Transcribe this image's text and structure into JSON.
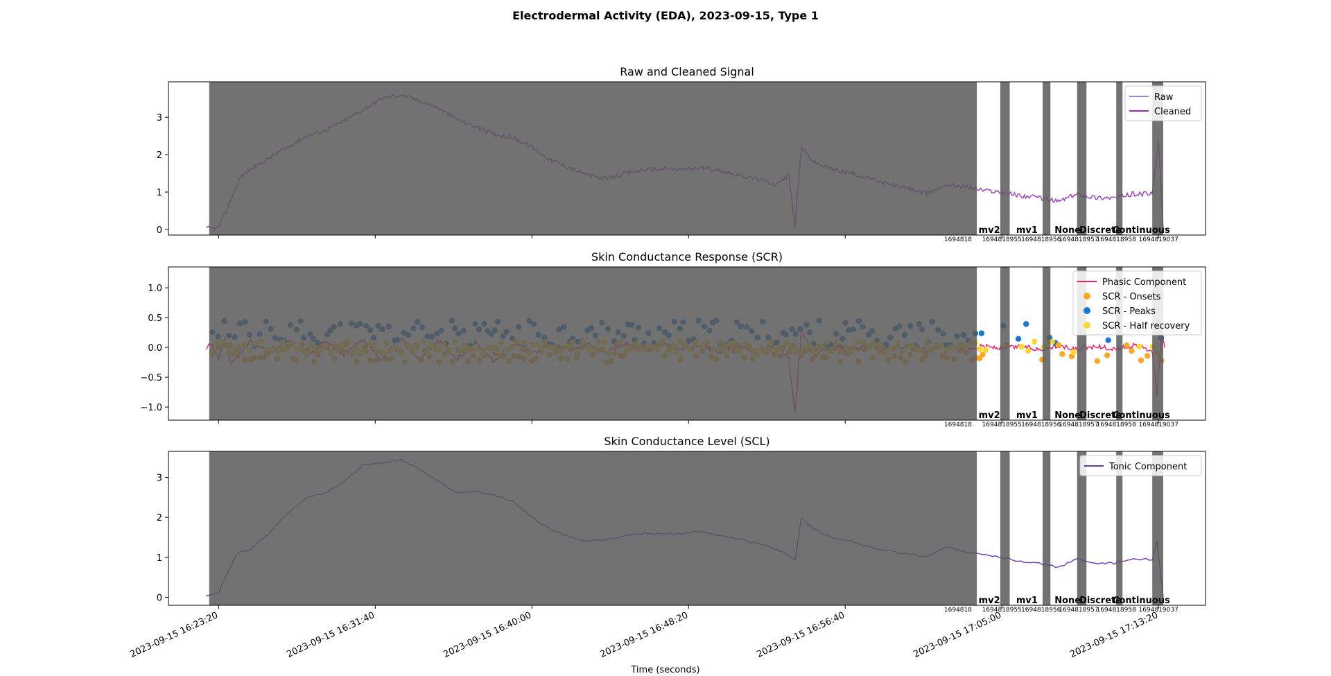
{
  "figure": {
    "title": "Electrodermal Activity (EDA), 2023-09-15, Type 1",
    "xlabel": "Time (seconds)"
  },
  "colors": {
    "raw": "#8e8ece",
    "cleaned": "#9c27b0",
    "phasic": "#e91e63",
    "onsets": "#ffa726",
    "peaks": "#1976d2",
    "half_recovery": "#fdd835",
    "tonic": "#673ab7",
    "shade": "#595959"
  },
  "x_axis": {
    "range": [
      "2023-09-15 16:20:40",
      "2023-09-15 17:15:50"
    ],
    "ticks": [
      "2023-09-15 16:23:20",
      "2023-09-15 16:31:40",
      "2023-09-15 16:40:00",
      "2023-09-15 16:48:20",
      "2023-09-15 16:56:40",
      "2023-09-15 17:05:00",
      "2023-09-15 17:13:20"
    ]
  },
  "regions": {
    "shaded_spans": [
      [
        "2023-09-15 16:22:50",
        "2023-09-15 17:03:40"
      ],
      [
        "2023-09-15 17:04:55",
        "2023-09-15 17:05:25"
      ],
      [
        "2023-09-15 17:07:10",
        "2023-09-15 17:07:35"
      ],
      [
        "2023-09-15 17:09:00",
        "2023-09-15 17:09:30"
      ],
      [
        "2023-09-15 17:11:05",
        "2023-09-15 17:11:25"
      ],
      [
        "2023-09-15 17:13:00",
        "2023-09-15 17:13:35"
      ]
    ],
    "labels": [
      {
        "text": "mv2",
        "t": "2023-09-15 17:04:20"
      },
      {
        "text": "mv1",
        "t": "2023-09-15 17:06:20"
      },
      {
        "text": "None",
        "t": "2023-09-15 17:08:30"
      },
      {
        "text": "Discrete",
        "t": "2023-09-15 17:10:15"
      },
      {
        "text": "Continuous",
        "t": "2023-09-15 17:12:25"
      }
    ],
    "id_labels": [
      {
        "text": "1694818",
        "t": "2023-09-15 17:02:40"
      },
      {
        "text": "1694818955",
        "t": "2023-09-15 17:05:00"
      },
      {
        "text": "1694818956",
        "t": "2023-09-15 17:07:05"
      },
      {
        "text": "1694818957",
        "t": "2023-09-15 17:09:05"
      },
      {
        "text": "1694818958",
        "t": "2023-09-15 17:11:05"
      },
      {
        "text": "1694819037",
        "t": "2023-09-15 17:13:20"
      }
    ]
  },
  "chart_data": [
    {
      "type": "line",
      "title": "Raw and Cleaned Signal",
      "xlabel": "",
      "ylabel": "",
      "ylim": [
        -0.15,
        3.95
      ],
      "yticks": [
        "0",
        "1",
        "2",
        "3"
      ],
      "legend": {
        "placement": "top-right",
        "entries": [
          "Raw",
          "Cleaned"
        ]
      },
      "grid": false,
      "series": [
        {
          "name": "Cleaned",
          "points": [
            [
              "16:22:40",
              0.02
            ],
            [
              "16:23:20",
              0.05
            ],
            [
              "16:23:40",
              0.4
            ],
            [
              "16:24:00",
              0.8
            ],
            [
              "16:24:30",
              1.4
            ],
            [
              "16:25:00",
              1.6
            ],
            [
              "16:26:00",
              1.9
            ],
            [
              "16:27:00",
              2.2
            ],
            [
              "16:28:00",
              2.5
            ],
            [
              "16:29:00",
              2.65
            ],
            [
              "16:30:00",
              2.9
            ],
            [
              "16:31:00",
              3.2
            ],
            [
              "16:32:00",
              3.5
            ],
            [
              "16:33:00",
              3.6
            ],
            [
              "16:34:00",
              3.45
            ],
            [
              "16:35:00",
              3.25
            ],
            [
              "16:36:00",
              2.95
            ],
            [
              "16:37:00",
              2.75
            ],
            [
              "16:38:00",
              2.55
            ],
            [
              "16:39:00",
              2.45
            ],
            [
              "16:40:00",
              2.2
            ],
            [
              "16:41:00",
              1.85
            ],
            [
              "16:42:00",
              1.65
            ],
            [
              "16:43:00",
              1.45
            ],
            [
              "16:44:00",
              1.35
            ],
            [
              "16:45:00",
              1.5
            ],
            [
              "16:46:00",
              1.6
            ],
            [
              "16:47:00",
              1.62
            ],
            [
              "16:48:00",
              1.6
            ],
            [
              "16:49:00",
              1.65
            ],
            [
              "16:50:00",
              1.58
            ],
            [
              "16:51:00",
              1.45
            ],
            [
              "16:52:00",
              1.35
            ],
            [
              "16:53:00",
              1.2
            ],
            [
              "16:53:40",
              1.45
            ],
            [
              "16:54:00",
              0.1
            ],
            [
              "16:54:20",
              2.2
            ],
            [
              "16:55:00",
              1.8
            ],
            [
              "16:56:00",
              1.6
            ],
            [
              "16:57:00",
              1.5
            ],
            [
              "16:58:00",
              1.35
            ],
            [
              "16:59:00",
              1.2
            ],
            [
              "17:00:00",
              1.1
            ],
            [
              "17:01:00",
              0.95
            ],
            [
              "17:02:00",
              1.2
            ],
            [
              "17:03:00",
              1.15
            ],
            [
              "17:04:00",
              1.05
            ],
            [
              "17:05:00",
              1.0
            ],
            [
              "17:06:00",
              0.9
            ],
            [
              "17:07:00",
              0.85
            ],
            [
              "17:08:00",
              0.75
            ],
            [
              "17:09:00",
              0.95
            ],
            [
              "17:10:00",
              0.85
            ],
            [
              "17:11:00",
              0.85
            ],
            [
              "17:12:00",
              0.95
            ],
            [
              "17:13:00",
              0.95
            ],
            [
              "17:13:20",
              2.4
            ],
            [
              "17:13:35",
              0.0
            ]
          ]
        }
      ]
    },
    {
      "type": "line",
      "title": "Skin Conductance Response (SCR)",
      "xlabel": "",
      "ylabel": "",
      "ylim": [
        -1.22,
        1.35
      ],
      "yticks": [
        "−1.0",
        "−0.5",
        "0.0",
        "0.5",
        "1.0"
      ],
      "legend": {
        "placement": "top-right",
        "entries": [
          "Phasic Component",
          "SCR - Onsets",
          "SCR - Peaks",
          "SCR - Half recovery"
        ]
      },
      "grid": false,
      "series": [
        {
          "name": "Phasic Component",
          "points": [
            [
              "16:22:40",
              0.0
            ],
            [
              "16:23:00",
              0.05
            ],
            [
              "16:23:20",
              -0.2
            ],
            [
              "16:23:40",
              0.15
            ],
            [
              "16:24:00",
              -0.3
            ],
            [
              "16:25:00",
              0.1
            ],
            [
              "16:26:00",
              -0.1
            ],
            [
              "16:27:00",
              0.12
            ],
            [
              "16:28:00",
              -0.15
            ],
            [
              "16:29:00",
              0.1
            ],
            [
              "16:30:00",
              -0.12
            ],
            [
              "16:31:00",
              0.14
            ],
            [
              "16:32:00",
              -0.2
            ],
            [
              "16:33:00",
              0.15
            ],
            [
              "16:34:00",
              -0.18
            ],
            [
              "16:35:00",
              0.12
            ],
            [
              "16:36:00",
              -0.2
            ],
            [
              "16:37:00",
              0.1
            ],
            [
              "16:38:00",
              -0.25
            ],
            [
              "16:39:00",
              0.08
            ],
            [
              "16:40:00",
              -0.1
            ],
            [
              "16:41:00",
              0.05
            ],
            [
              "16:42:00",
              -0.05
            ],
            [
              "16:43:00",
              0.04
            ],
            [
              "16:44:00",
              -0.08
            ],
            [
              "16:45:00",
              0.06
            ],
            [
              "16:46:00",
              -0.05
            ],
            [
              "16:47:00",
              0.05
            ],
            [
              "16:48:00",
              -0.04
            ],
            [
              "16:49:00",
              0.04
            ],
            [
              "16:50:00",
              -0.08
            ],
            [
              "16:51:00",
              0.05
            ],
            [
              "16:52:00",
              -0.1
            ],
            [
              "16:53:00",
              0.08
            ],
            [
              "16:53:40",
              -0.2
            ],
            [
              "16:54:00",
              -1.1
            ],
            [
              "16:54:20",
              0.3
            ],
            [
              "16:55:00",
              -0.15
            ],
            [
              "16:56:00",
              0.05
            ],
            [
              "16:57:00",
              -0.04
            ],
            [
              "16:58:00",
              0.03
            ],
            [
              "16:59:00",
              -0.03
            ],
            [
              "17:00:00",
              0.04
            ],
            [
              "17:01:00",
              -0.05
            ],
            [
              "17:02:00",
              0.06
            ],
            [
              "17:03:00",
              -0.05
            ],
            [
              "17:04:00",
              0.03
            ],
            [
              "17:05:00",
              -0.02
            ],
            [
              "17:06:00",
              0.02
            ],
            [
              "17:07:00",
              -0.03
            ],
            [
              "17:08:00",
              0.02
            ],
            [
              "17:09:00",
              -0.04
            ],
            [
              "17:10:00",
              0.02
            ],
            [
              "17:11:00",
              -0.03
            ],
            [
              "17:12:00",
              0.03
            ],
            [
              "17:13:00",
              -0.05
            ],
            [
              "17:13:15",
              -0.8
            ],
            [
              "17:13:30",
              0.2
            ],
            [
              "17:13:40",
              0.0
            ]
          ]
        }
      ],
      "scatter": [
        {
          "name": "SCR - Peaks",
          "y_range": [
            0.02,
            0.45
          ]
        },
        {
          "name": "SCR - Onsets",
          "y_range": [
            -0.25,
            0.05
          ]
        },
        {
          "name": "SCR - Half recovery",
          "y_range": [
            -0.1,
            0.1
          ]
        }
      ]
    },
    {
      "type": "line",
      "title": "Skin Conductance Level (SCL)",
      "xlabel": "",
      "ylabel": "",
      "ylim": [
        -0.2,
        3.65
      ],
      "yticks": [
        "0",
        "1",
        "2",
        "3"
      ],
      "legend": {
        "placement": "top-right",
        "entries": [
          "Tonic Component"
        ]
      },
      "grid": false,
      "series": [
        {
          "name": "Tonic Component",
          "points": [
            [
              "16:22:40",
              0.05
            ],
            [
              "16:23:20",
              0.1
            ],
            [
              "16:23:40",
              0.5
            ],
            [
              "16:24:00",
              0.8
            ],
            [
              "16:24:20",
              1.1
            ],
            [
              "16:25:00",
              1.2
            ],
            [
              "16:26:00",
              1.6
            ],
            [
              "16:27:00",
              2.1
            ],
            [
              "16:28:00",
              2.5
            ],
            [
              "16:29:00",
              2.6
            ],
            [
              "16:30:00",
              2.9
            ],
            [
              "16:31:00",
              3.3
            ],
            [
              "16:32:00",
              3.35
            ],
            [
              "16:33:00",
              3.45
            ],
            [
              "16:34:00",
              3.2
            ],
            [
              "16:35:00",
              2.9
            ],
            [
              "16:36:00",
              2.6
            ],
            [
              "16:37:00",
              2.65
            ],
            [
              "16:38:00",
              2.55
            ],
            [
              "16:39:00",
              2.4
            ],
            [
              "16:40:00",
              2.0
            ],
            [
              "16:41:00",
              1.7
            ],
            [
              "16:42:00",
              1.5
            ],
            [
              "16:43:00",
              1.4
            ],
            [
              "16:44:00",
              1.45
            ],
            [
              "16:45:00",
              1.55
            ],
            [
              "16:46:00",
              1.6
            ],
            [
              "16:47:00",
              1.58
            ],
            [
              "16:48:00",
              1.6
            ],
            [
              "16:49:00",
              1.65
            ],
            [
              "16:50:00",
              1.55
            ],
            [
              "16:51:00",
              1.45
            ],
            [
              "16:52:00",
              1.35
            ],
            [
              "16:53:00",
              1.2
            ],
            [
              "16:54:00",
              0.95
            ],
            [
              "16:54:20",
              2.0
            ],
            [
              "16:55:00",
              1.7
            ],
            [
              "16:56:00",
              1.5
            ],
            [
              "16:57:00",
              1.4
            ],
            [
              "16:58:00",
              1.25
            ],
            [
              "16:59:00",
              1.15
            ],
            [
              "17:00:00",
              1.1
            ],
            [
              "17:01:00",
              1.0
            ],
            [
              "17:02:00",
              1.25
            ],
            [
              "17:03:00",
              1.15
            ],
            [
              "17:04:00",
              1.05
            ],
            [
              "17:05:00",
              1.0
            ],
            [
              "17:06:00",
              0.9
            ],
            [
              "17:07:00",
              0.85
            ],
            [
              "17:08:00",
              0.75
            ],
            [
              "17:09:00",
              0.95
            ],
            [
              "17:10:00",
              0.85
            ],
            [
              "17:11:00",
              0.85
            ],
            [
              "17:12:00",
              0.95
            ],
            [
              "17:13:00",
              0.95
            ],
            [
              "17:13:15",
              1.4
            ],
            [
              "17:13:35",
              0.0
            ]
          ]
        }
      ]
    }
  ]
}
